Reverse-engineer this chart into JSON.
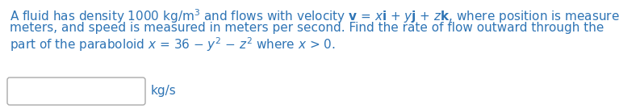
{
  "background_color": "#ffffff",
  "text_color": "#2e74b5",
  "unit_color": "#2e74b5",
  "box_edge_color": "#aaaaaa",
  "fontsize": 11.0,
  "line1": "A fluid has density 1000 kg/m$^3$ and flows with velocity $\\mathbf{v}$ = $x\\mathbf{i}$ + $y\\mathbf{j}$ + $z\\mathbf{k}$, where position is measured in",
  "line2": "meters, and speed is measured in meters per second. Find the rate of flow outward through the",
  "line3": "part of the paraboloid $x$ = 36 − $y^2$ − $z^2$ where $x$ > 0.",
  "unit_label": "kg/s"
}
